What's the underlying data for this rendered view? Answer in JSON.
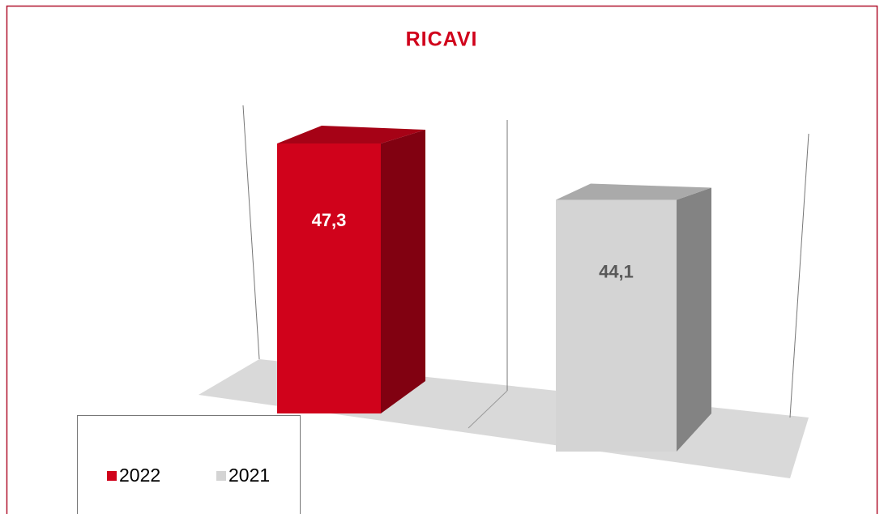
{
  "chart_data": {
    "type": "bar3d",
    "title": "RICAVI",
    "series": [
      {
        "name": "2022",
        "color": "#d0021b",
        "values": [
          47.3
        ],
        "value_labels": [
          "47,3"
        ]
      },
      {
        "name": "2021",
        "color": "#d4d4d4",
        "values": [
          44.1
        ],
        "value_labels": [
          "44,1"
        ]
      }
    ],
    "ylim": [
      0,
      50
    ]
  }
}
